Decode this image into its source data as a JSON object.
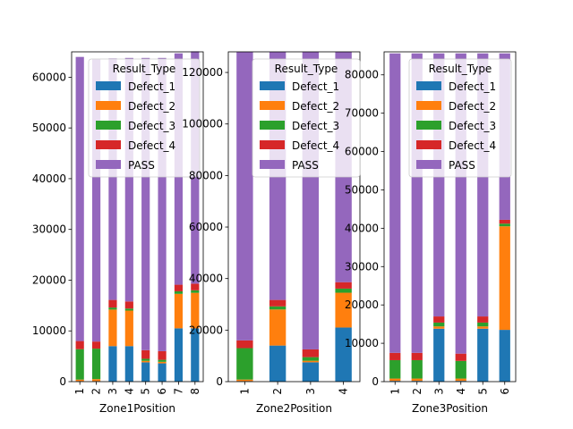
{
  "chart_data": [
    {
      "type": "bar",
      "stacked": true,
      "xlabel": "Zone1Position",
      "ylabel": "",
      "categories": [
        "1",
        "2",
        "3",
        "4",
        "5",
        "6",
        "7",
        "8"
      ],
      "ylim": [
        0,
        65000
      ],
      "yticks": [
        0,
        10000,
        20000,
        30000,
        40000,
        50000,
        60000
      ],
      "legend": {
        "title": "Result_Type",
        "placement": "top-right"
      },
      "series": [
        {
          "name": "Defect_1",
          "color": "#1f77b4",
          "values": [
            100,
            100,
            7000,
            7000,
            3800,
            3600,
            10500,
            10500
          ]
        },
        {
          "name": "Defect_2",
          "color": "#ff7f0e",
          "values": [
            300,
            400,
            7200,
            7000,
            300,
            300,
            6800,
            7000
          ]
        },
        {
          "name": "Defect_3",
          "color": "#2ca02c",
          "values": [
            6000,
            6000,
            400,
            400,
            400,
            400,
            500,
            500
          ]
        },
        {
          "name": "Defect_4",
          "color": "#d62728",
          "values": [
            1600,
            1400,
            1500,
            1400,
            1700,
            1700,
            1300,
            1300
          ]
        },
        {
          "name": "PASS",
          "color": "#9467bd",
          "values": [
            56000,
            55600,
            47600,
            48000,
            57600,
            57800,
            45600,
            45800
          ]
        }
      ]
    },
    {
      "type": "bar",
      "stacked": true,
      "xlabel": "Zone2Position",
      "ylabel": "",
      "categories": [
        "1",
        "2",
        "3",
        "4"
      ],
      "ylim": [
        0,
        128000
      ],
      "yticks": [
        0,
        20000,
        40000,
        60000,
        80000,
        100000,
        120000
      ],
      "legend": {
        "title": "Result_Type",
        "placement": "top-right"
      },
      "series": [
        {
          "name": "Defect_1",
          "color": "#1f77b4",
          "values": [
            200,
            14000,
            7500,
            21000
          ]
        },
        {
          "name": "Defect_2",
          "color": "#ff7f0e",
          "values": [
            600,
            14000,
            600,
            13500
          ]
        },
        {
          "name": "Defect_3",
          "color": "#2ca02c",
          "values": [
            12200,
            1200,
            1400,
            1600
          ]
        },
        {
          "name": "Defect_4",
          "color": "#d62728",
          "values": [
            3000,
            2500,
            3000,
            2500
          ]
        },
        {
          "name": "PASS",
          "color": "#9467bd",
          "values": [
            112000,
            96300,
            115500,
            89400
          ]
        }
      ]
    },
    {
      "type": "bar",
      "stacked": true,
      "xlabel": "Zone3Position",
      "ylabel": "",
      "categories": [
        "1",
        "2",
        "3",
        "4",
        "5",
        "6"
      ],
      "ylim": [
        0,
        86000
      ],
      "yticks": [
        0,
        10000,
        20000,
        30000,
        40000,
        50000,
        60000,
        70000,
        80000
      ],
      "legend": {
        "title": "Result_Type",
        "placement": "top-right"
      },
      "series": [
        {
          "name": "Defect_1",
          "color": "#1f77b4",
          "values": [
            200,
            200,
            13800,
            200,
            13800,
            13500
          ]
        },
        {
          "name": "Defect_2",
          "color": "#ff7f0e",
          "values": [
            600,
            600,
            600,
            600,
            600,
            27000
          ]
        },
        {
          "name": "Defect_3",
          "color": "#2ca02c",
          "values": [
            4800,
            4800,
            1000,
            4600,
            1000,
            700
          ]
        },
        {
          "name": "Defect_4",
          "color": "#d62728",
          "values": [
            1900,
            1900,
            1600,
            1900,
            1600,
            1000
          ]
        },
        {
          "name": "PASS",
          "color": "#9467bd",
          "values": [
            78100,
            78100,
            68600,
            78300,
            68600,
            43400
          ]
        }
      ]
    }
  ]
}
